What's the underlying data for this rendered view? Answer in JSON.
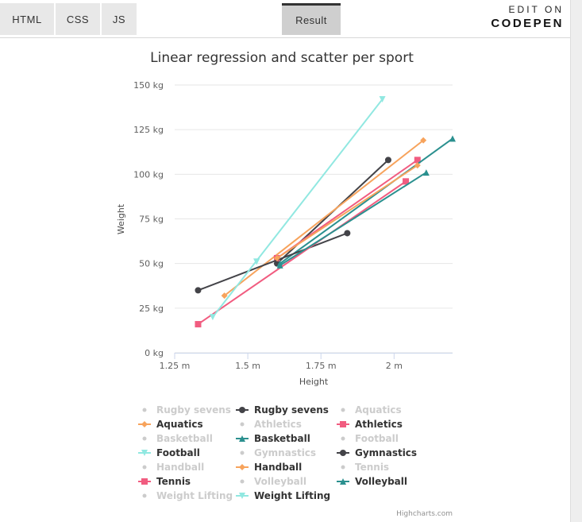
{
  "tabs": {
    "html": "HTML",
    "css": "CSS",
    "js": "JS",
    "result": "Result"
  },
  "codepen": {
    "line1": "EDIT ON",
    "line2": "CODEPEN"
  },
  "credit": "Highcharts.com",
  "colors": {
    "grid": "#e6e6e6",
    "hidden": "#cccccc",
    "axisLine": "#ccd6eb"
  },
  "chart_data": {
    "type": "line",
    "title": "Linear regression and scatter per sport",
    "xlabel": "Height",
    "ylabel": "Weight",
    "xlim": [
      1.25,
      2.2
    ],
    "ylim": [
      0,
      150
    ],
    "x_ticks": [
      {
        "v": 1.25,
        "label": "1.25 m"
      },
      {
        "v": 1.5,
        "label": "1.5 m"
      },
      {
        "v": 1.75,
        "label": "1.75 m"
      },
      {
        "v": 2.0,
        "label": "2 m"
      }
    ],
    "y_ticks": [
      {
        "v": 0,
        "label": "0 kg"
      },
      {
        "v": 25,
        "label": "25 kg"
      },
      {
        "v": 50,
        "label": "50 kg"
      },
      {
        "v": 75,
        "label": "75 kg"
      },
      {
        "v": 100,
        "label": "100 kg"
      },
      {
        "v": 125,
        "label": "125 kg"
      },
      {
        "v": 150,
        "label": "150 kg"
      }
    ],
    "grid": true,
    "legend_position": "bottom",
    "series": [
      {
        "name": "Rugby sevens",
        "visible": false,
        "color": "#cccccc",
        "marker": "circle",
        "points": []
      },
      {
        "name": "Rugby sevens",
        "visible": true,
        "color": "#434348",
        "marker": "circle",
        "points": [
          [
            1.6,
            50
          ],
          [
            1.98,
            108
          ]
        ]
      },
      {
        "name": "Aquatics",
        "visible": false,
        "color": "#cccccc",
        "marker": "circle",
        "points": []
      },
      {
        "name": "Aquatics",
        "visible": true,
        "color": "#f7a35c",
        "marker": "diamond",
        "points": [
          [
            1.42,
            32
          ],
          [
            2.1,
            119
          ]
        ]
      },
      {
        "name": "Athletics",
        "visible": false,
        "color": "#cccccc",
        "marker": "circle",
        "points": []
      },
      {
        "name": "Athletics",
        "visible": true,
        "color": "#f15c80",
        "marker": "square",
        "points": [
          [
            1.6,
            53
          ],
          [
            2.08,
            108
          ]
        ]
      },
      {
        "name": "Basketball",
        "visible": false,
        "color": "#cccccc",
        "marker": "circle",
        "points": []
      },
      {
        "name": "Basketball",
        "visible": true,
        "color": "#2b908f",
        "marker": "triangle",
        "points": [
          [
            1.61,
            50
          ],
          [
            2.2,
            120
          ]
        ]
      },
      {
        "name": "Football",
        "visible": false,
        "color": "#cccccc",
        "marker": "circle",
        "points": []
      },
      {
        "name": "Football",
        "visible": true,
        "color": "#91e8e1",
        "marker": "triangle-down",
        "points": [
          [
            1.53,
            51
          ],
          [
            1.53,
            51
          ]
        ]
      },
      {
        "name": "Gymnastics",
        "visible": false,
        "color": "#cccccc",
        "marker": "circle",
        "points": []
      },
      {
        "name": "Gymnastics",
        "visible": true,
        "color": "#434348",
        "marker": "circle",
        "points": [
          [
            1.33,
            35
          ],
          [
            1.84,
            67
          ]
        ]
      },
      {
        "name": "Handball",
        "visible": false,
        "color": "#cccccc",
        "marker": "circle",
        "points": []
      },
      {
        "name": "Handball",
        "visible": true,
        "color": "#f7a35c",
        "marker": "diamond",
        "points": [
          [
            1.6,
            53
          ],
          [
            2.08,
            105
          ]
        ]
      },
      {
        "name": "Tennis",
        "visible": false,
        "color": "#cccccc",
        "marker": "circle",
        "points": []
      },
      {
        "name": "Tennis",
        "visible": true,
        "color": "#f15c80",
        "marker": "square",
        "points": [
          [
            1.33,
            16
          ],
          [
            2.04,
            96
          ]
        ]
      },
      {
        "name": "Volleyball",
        "visible": false,
        "color": "#cccccc",
        "marker": "circle",
        "points": []
      },
      {
        "name": "Volleyball",
        "visible": true,
        "color": "#2b908f",
        "marker": "triangle",
        "points": [
          [
            1.61,
            49
          ],
          [
            2.11,
            101
          ]
        ]
      },
      {
        "name": "Weight Lifting",
        "visible": false,
        "color": "#cccccc",
        "marker": "circle",
        "points": []
      },
      {
        "name": "Weight Lifting",
        "visible": true,
        "color": "#91e8e1",
        "marker": "triangle-down",
        "points": [
          [
            1.38,
            20
          ],
          [
            1.96,
            142
          ]
        ]
      }
    ]
  }
}
